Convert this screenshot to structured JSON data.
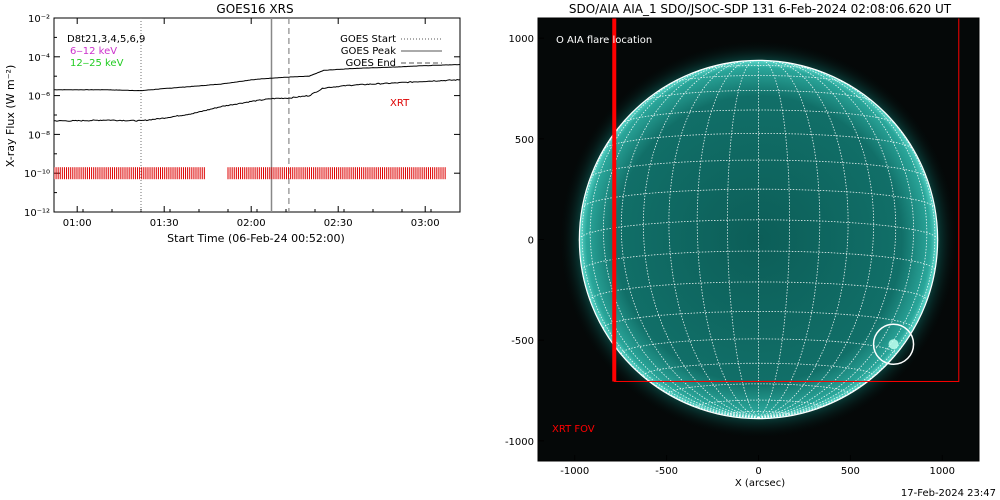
{
  "left_panel": {
    "title": "GOES16 XRS",
    "ylabel": "X-ray Flux (W m⁻²)",
    "xlabel": "Start Time (06-Feb-24 00:52:00)",
    "legend_tl": [
      "D8t21,3,4,5,6,9",
      "6‒12 keV",
      "12‒25 keV"
    ],
    "legend_tr": [
      "GOES Start",
      "GOES Peak",
      "GOES End"
    ],
    "xrt_label": "XRT",
    "colors": {
      "low": "#cc33cc",
      "high": "#22cc22",
      "xrt": "#dd0000",
      "line": "#000000"
    }
  },
  "right_panel": {
    "title": "SDO/AIA AIA_1 SDO/JSOC-SDP 131  6-Feb-2024 02:08:06.620 UT",
    "xlabel": "X (arcsec)",
    "legend": "O AIA flare location",
    "fov_label": "XRT FOV",
    "timestamp": "17-Feb-2024 23:47",
    "colors": {
      "disk": "#0f6f66",
      "grid": "#ffffff",
      "fov": "#ff0000"
    }
  },
  "chart_data": [
    {
      "type": "line",
      "title": "GOES16 XRS",
      "xlabel": "Start Time (06-Feb-24 00:52:00)",
      "ylabel": "X-ray Flux (W m⁻²)",
      "yscale": "log",
      "xlim": [
        "00:52",
        "03:12"
      ],
      "ylim": [
        1e-12,
        0.01
      ],
      "x_ticks": [
        "01:00",
        "01:30",
        "02:00",
        "02:30",
        "03:00"
      ],
      "y_ticks": [
        "10⁻¹²",
        "10⁻¹⁰",
        "10⁻⁸",
        "10⁻⁶",
        "10⁻⁴",
        "10⁻²"
      ],
      "series": [
        {
          "name": "6‒12 keV",
          "x": [
            "00:52",
            "01:00",
            "01:10",
            "01:22",
            "01:30",
            "01:40",
            "01:50",
            "02:00",
            "02:07",
            "02:13",
            "02:20",
            "02:25",
            "02:35",
            "02:50",
            "03:00",
            "03:12"
          ],
          "values": [
            2e-06,
            2e-06,
            2e-06,
            1.8e-06,
            2.3e-06,
            3e-06,
            4e-06,
            6.5e-06,
            8e-06,
            9e-06,
            1e-05,
            2e-05,
            2.5e-05,
            3e-05,
            3.5e-05,
            4e-05
          ]
        },
        {
          "name": "12‒25 keV",
          "x": [
            "00:52",
            "01:00",
            "01:10",
            "01:22",
            "01:30",
            "01:40",
            "01:50",
            "02:00",
            "02:07",
            "02:13",
            "02:20",
            "02:25",
            "02:35",
            "02:50",
            "03:00",
            "03:12"
          ],
          "values": [
            5e-08,
            5e-08,
            5.5e-08,
            5e-08,
            7e-08,
            1.2e-07,
            2.8e-07,
            5e-07,
            7e-07,
            7.5e-07,
            1e-06,
            2.5e-06,
            3.5e-06,
            4.5e-06,
            5.5e-06,
            6.5e-06
          ]
        }
      ],
      "events": [
        {
          "label": "GOES Start",
          "time": "01:22",
          "style": "dotted"
        },
        {
          "label": "GOES Peak",
          "time": "02:07",
          "style": "solid"
        },
        {
          "label": "GOES End",
          "time": "02:13",
          "style": "dashed"
        }
      ],
      "xrt_coverage": [
        [
          "00:52",
          "01:44"
        ],
        [
          "01:52",
          "03:07"
        ]
      ],
      "xrt_level": 1e-10
    },
    {
      "type": "image",
      "title": "SDO/AIA AIA_1 SDO/JSOC-SDP 131  6-Feb-2024 02:08:06.620 UT",
      "xlabel": "X (arcsec)",
      "xlim": [
        -1200,
        1200
      ],
      "ylim": [
        -1100,
        1100
      ],
      "x_ticks": [
        -1000,
        -500,
        0,
        500,
        1000
      ],
      "y_ticks": [
        -1000,
        -500,
        0,
        500,
        1000
      ],
      "solar_radius_arcsec": 975,
      "grid_spacing_deg": 10,
      "flare_location_arcsec": [
        735,
        -520
      ],
      "xrt_fov_arcsec": {
        "x": [
          -785,
          1090
        ],
        "y": [
          -705,
          1110
        ]
      }
    }
  ]
}
